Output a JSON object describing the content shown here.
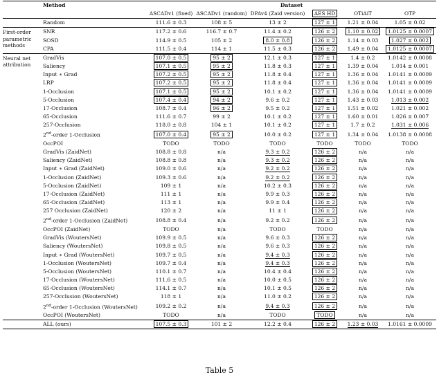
{
  "header": {
    "method": "Method",
    "dataset": "Dataset",
    "datasets": [
      "ASCADv1 (fixed)",
      "ASCADv1 (random)",
      "DPAv4 (Zaid version)",
      "AES HD",
      "OTiAiT",
      "OTP"
    ]
  },
  "random_row": {
    "method": "Random",
    "values": [
      "111.6 ± 0.3",
      "108 ± 5",
      "13 ± 2",
      "127 ± 1",
      "1.21 ± 0.04",
      "1.05 ± 0.02"
    ]
  },
  "group1": {
    "label": "First-order parametric methods",
    "rows": [
      {
        "method": "SNR",
        "values": [
          "117.2 ± 0.6",
          "116.7 ± 0.7",
          "11.4 ± 0.2",
          "126 ± 2",
          "1.10 ± 0.02",
          "1.0125 ± 0.0007"
        ]
      },
      {
        "method": "SOSD",
        "values": [
          "114.9 ± 0.5",
          "105 ± 2",
          "8.0 ± 0.8",
          "126 ± 2",
          "1.14 ± 0.03",
          "1.027 ± 0.002"
        ]
      },
      {
        "method": "CPA",
        "values": [
          "111.5 ± 0.4",
          "114 ± 1",
          "11.5 ± 0.3",
          "126 ± 2",
          "1.49 ± 0.04",
          "1.0125 ± 0.0007"
        ]
      }
    ]
  },
  "group2": {
    "label": "Neural net attribution",
    "rows": [
      {
        "method": "GradVis",
        "values": [
          "107.0 ± 0.5",
          "95 ± 2",
          "12.1 ± 0.3",
          "127 ± 1",
          "1.4 ± 0.2",
          "1.0142 ± 0.0008"
        ]
      },
      {
        "method": "Saliency",
        "values": [
          "107.1 ± 0.5",
          "95 ± 2",
          "11.8 ± 0.3",
          "127 ± 1",
          "1.39 ± 0.04",
          "1.014 ± 0.001"
        ]
      },
      {
        "method": "Input ∗ Grad",
        "values": [
          "107.2 ± 0.5",
          "95 ± 2",
          "11.8 ± 0.4",
          "127 ± 1",
          "1.36 ± 0.04",
          "1.0141 ± 0.0009"
        ]
      },
      {
        "method": "LRP",
        "values": [
          "107.2 ± 0.5",
          "95 ± 2",
          "11.8 ± 0.4",
          "127 ± 1",
          "1.36 ± 0.04",
          "1.0141 ± 0.0009"
        ]
      },
      {
        "method": "1-Occlusion",
        "values": [
          "107.1 ± 0.5",
          "95 ± 2",
          "10.1 ± 0.2",
          "127 ± 1",
          "1.36 ± 0.04",
          "1.0141 ± 0.0009"
        ]
      },
      {
        "method": "5-Occlusion",
        "values": [
          "107.4 ± 0.4",
          "94 ± 2",
          "9.6 ± 0.2",
          "127 ± 1",
          "1.43 ± 0.03",
          "1.013 ± 0.002"
        ]
      },
      {
        "method": "17-Occlusion",
        "values": [
          "108.7 ± 0.4",
          "96 ± 2",
          "9.5 ± 0.2",
          "127 ± 1",
          "1.51 ± 0.02",
          "1.021 ± 0.002"
        ]
      },
      {
        "method": "65-Occlusion",
        "values": [
          "111.6 ± 0.7",
          "99 ± 2",
          "10.1 ± 0.2",
          "127 ± 1",
          "1.60 ± 0.01",
          "1.026 ± 0.007"
        ]
      },
      {
        "method": "257-Occlusion",
        "values": [
          "118.0 ± 0.8",
          "104 ± 1",
          "10.1 ± 0.2",
          "127 ± 1",
          "1.7 ± 0.2",
          "1.031 ± 0.006"
        ]
      },
      {
        "method_sup": "nd",
        "method_pre": "2",
        "method_post": "-order 1-Occlusion",
        "values": [
          "107.0 ± 0.4",
          "95 ± 2",
          "10.0 ± 0.2",
          "127 ± 1",
          "1.34 ± 0.04",
          "1.0138 ± 0.0008"
        ]
      },
      {
        "method": "OccPOI",
        "values": [
          "TODO",
          "TODO",
          "TODO",
          "TODO",
          "TODO",
          "TODO"
        ]
      },
      {
        "method": "GradVis (ZaidNet)",
        "values": [
          "108.8 ± 0.8",
          "n/a",
          "9.3 ± 0.2",
          "126 ± 2",
          "n/a",
          "n/a"
        ]
      },
      {
        "method": "Saliency (ZaidNet)",
        "values": [
          "108.8 ± 0.8",
          "n/a",
          "9.3 ± 0.2",
          "126 ± 2",
          "n/a",
          "n/a"
        ]
      },
      {
        "method": "Input ∗ Grad (ZaidNet)",
        "values": [
          "109.0 ± 0.6",
          "n/a",
          "9.2 ± 0.2",
          "126 ± 2",
          "n/a",
          "n/a"
        ]
      },
      {
        "method": "1-Occlusion (ZaidNet)",
        "values": [
          "109.3 ± 0.6",
          "n/a",
          "9.2 ± 0.2",
          "126 ± 2",
          "n/a",
          "n/a"
        ]
      },
      {
        "method": "5-Occlusion (ZaidNet)",
        "values": [
          "109 ± 1",
          "n/a",
          "10.2 ± 0.3",
          "126 ± 2",
          "n/a",
          "n/a"
        ]
      },
      {
        "method": "17-Occlusion (ZaidNet)",
        "values": [
          "111 ± 1",
          "n/a",
          "9.9 ± 0.3",
          "126 ± 2",
          "n/a",
          "n/a"
        ]
      },
      {
        "method": "65-Occlusion (ZaidNet)",
        "values": [
          "113 ± 1",
          "n/a",
          "9.9 ± 0.4",
          "126 ± 2",
          "n/a",
          "n/a"
        ]
      },
      {
        "method": "257 Occlusion (ZaidNet)",
        "values": [
          "120 ± 2",
          "n/a",
          "11 ± 1",
          "126 ± 2",
          "n/a",
          "n/a"
        ]
      },
      {
        "method_sup": "nd",
        "method_pre": "2",
        "method_post": "-order 1-Occlusion (ZaidNet)",
        "values": [
          "108.8 ± 0.4",
          "n/a",
          "9.2 ± 0.2",
          "126 ± 2",
          "n/a",
          "n/a"
        ]
      },
      {
        "method": "OccPOI (ZaidNet)",
        "values": [
          "TODO",
          "n/a",
          "TODO",
          "TODO",
          "n/a",
          "n/a"
        ]
      },
      {
        "method": "GradVis (WoutersNet)",
        "values": [
          "109.9 ± 0.5",
          "n/a",
          "9.6 ± 0.3",
          "126 ± 2",
          "n/a",
          "n/a"
        ]
      },
      {
        "method": "Saliency (WoutersNet)",
        "values": [
          "109.8 ± 0.5",
          "n/a",
          "9.6 ± 0.3",
          "126 ± 2",
          "n/a",
          "n/a"
        ]
      },
      {
        "method": "Input ∗ Grad (WoutersNet)",
        "values": [
          "109.7 ± 0.5",
          "n/a",
          "9.4 ± 0.3",
          "126 ± 2",
          "n/a",
          "n/a"
        ]
      },
      {
        "method": "1-Occlusion (WoutersNet)",
        "values": [
          "109.7 ± 0.4",
          "n/a",
          "9.4 ± 0.3",
          "126 ± 2",
          "n/a",
          "n/a"
        ]
      },
      {
        "method": "5-Occlusion (WoutersNet)",
        "values": [
          "110.1 ± 0.7",
          "n/a",
          "10.4 ± 0.4",
          "126 ± 2",
          "n/a",
          "n/a"
        ]
      },
      {
        "method": "17-Occlusion (WoutersNet)",
        "values": [
          "111.6 ± 0.5",
          "n/a",
          "10.0 ± 0.5",
          "126 ± 2",
          "n/a",
          "n/a"
        ]
      },
      {
        "method": "65-Occlusion (WoutersNet)",
        "values": [
          "114.1 ± 0.7",
          "n/a",
          "10.1 ± 0.5",
          "126 ± 2",
          "n/a",
          "n/a"
        ]
      },
      {
        "method": "257-Occlusion (WoutersNet)",
        "values": [
          "118 ± 1",
          "n/a",
          "11.0 ± 0.2",
          "126 ± 2",
          "n/a",
          "n/a"
        ]
      },
      {
        "method_sup": "nd",
        "method_pre": "2",
        "method_post": "-order 1-Occlusion (WoutersNet)",
        "values": [
          "109.2 ± 0.2",
          "n/a",
          "9.4 ± 0.3",
          "126 ± 2",
          "n/a",
          "n/a"
        ]
      },
      {
        "method": "OccPOI (WoutersNet)",
        "values": [
          "TODO",
          "n/a",
          "TODO",
          "TODO",
          "n/a",
          "n/a"
        ]
      }
    ]
  },
  "all_row": {
    "method": "ALL (ours)",
    "values": [
      "107.5 ± 0.3",
      "101 ± 2",
      "12.2 ± 0.4",
      "126 ± 2",
      "1.23 ± 0.03",
      "1.0161 ± 0.0009"
    ]
  },
  "caption": "Table 5"
}
